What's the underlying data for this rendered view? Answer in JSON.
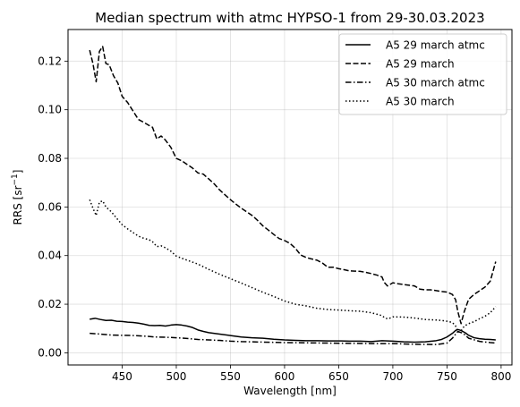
{
  "chart_data": {
    "type": "line",
    "title": "Median spectrum with atmc HYPSO-1 from 29-30.03.2023",
    "xlabel": "Wavelength [nm]",
    "ylabel": "RRS [sr",
    "ylabel_sup": "−1",
    "ylabel_end": "]",
    "xlim": [
      400,
      810
    ],
    "ylim": [
      -0.005,
      0.133
    ],
    "xticks": [
      450,
      500,
      550,
      600,
      650,
      700,
      750,
      800
    ],
    "yticks": [
      0.0,
      0.02,
      0.04,
      0.06,
      0.08,
      0.1,
      0.12
    ],
    "ytick_labels": [
      "0.00",
      "0.02",
      "0.04",
      "0.06",
      "0.08",
      "0.10",
      "0.12"
    ],
    "grid": true,
    "legend_position": "top-right",
    "series": [
      {
        "name": "A5 29 march atmc",
        "style": "solid",
        "color": "#000000",
        "x": [
          420,
          425,
          430,
          435,
          440,
          445,
          450,
          455,
          460,
          465,
          470,
          475,
          480,
          485,
          490,
          495,
          500,
          505,
          510,
          515,
          520,
          525,
          530,
          540,
          550,
          560,
          570,
          580,
          590,
          600,
          610,
          620,
          630,
          640,
          650,
          660,
          670,
          680,
          690,
          700,
          710,
          720,
          730,
          740,
          745,
          750,
          755,
          758,
          760,
          763,
          767,
          770,
          775,
          780,
          785,
          790,
          795
        ],
        "y": [
          0.0138,
          0.0142,
          0.0137,
          0.0133,
          0.0134,
          0.013,
          0.0129,
          0.0126,
          0.0125,
          0.0122,
          0.0118,
          0.0113,
          0.0112,
          0.0113,
          0.011,
          0.0114,
          0.0116,
          0.0114,
          0.011,
          0.0104,
          0.0094,
          0.0088,
          0.0083,
          0.0077,
          0.0071,
          0.0065,
          0.0062,
          0.006,
          0.0056,
          0.0053,
          0.0051,
          0.005,
          0.005,
          0.0049,
          0.0049,
          0.0048,
          0.0048,
          0.0046,
          0.005,
          0.0048,
          0.0045,
          0.0044,
          0.0045,
          0.005,
          0.0055,
          0.0065,
          0.008,
          0.0092,
          0.0096,
          0.0092,
          0.0082,
          0.0072,
          0.0062,
          0.0058,
          0.0056,
          0.0055,
          0.0053
        ]
      },
      {
        "name": "A5 29 march",
        "style": "dashed",
        "color": "#000000",
        "x": [
          420,
          423,
          426,
          429,
          432,
          435,
          438,
          442,
          446,
          450,
          455,
          460,
          465,
          470,
          475,
          478,
          482,
          486,
          490,
          495,
          500,
          505,
          510,
          515,
          520,
          525,
          530,
          535,
          540,
          545,
          550,
          555,
          560,
          565,
          570,
          575,
          580,
          585,
          590,
          595,
          600,
          605,
          610,
          615,
          620,
          625,
          630,
          635,
          640,
          645,
          650,
          655,
          660,
          665,
          670,
          675,
          680,
          685,
          690,
          692,
          695,
          700,
          705,
          710,
          715,
          720,
          725,
          730,
          735,
          740,
          745,
          750,
          752,
          755,
          758,
          760,
          763,
          766,
          770,
          775,
          780,
          785,
          790,
          795
        ],
        "y": [
          0.1245,
          0.119,
          0.1115,
          0.124,
          0.126,
          0.119,
          0.1185,
          0.114,
          0.111,
          0.1055,
          0.103,
          0.0995,
          0.096,
          0.0948,
          0.0935,
          0.0928,
          0.088,
          0.0892,
          0.0875,
          0.0845,
          0.08,
          0.079,
          0.0775,
          0.076,
          0.074,
          0.0735,
          0.0715,
          0.0695,
          0.067,
          0.065,
          0.063,
          0.0612,
          0.0595,
          0.058,
          0.0565,
          0.0545,
          0.0522,
          0.0505,
          0.0487,
          0.047,
          0.0462,
          0.045,
          0.043,
          0.0402,
          0.0392,
          0.0386,
          0.0381,
          0.0369,
          0.0352,
          0.0352,
          0.0346,
          0.0342,
          0.0337,
          0.0336,
          0.0335,
          0.0331,
          0.0326,
          0.032,
          0.0312,
          0.029,
          0.0275,
          0.0288,
          0.0284,
          0.0281,
          0.0278,
          0.0275,
          0.0262,
          0.0259,
          0.0259,
          0.0256,
          0.0252,
          0.025,
          0.0246,
          0.024,
          0.0218,
          0.017,
          0.012,
          0.017,
          0.022,
          0.024,
          0.0255,
          0.027,
          0.0295,
          0.0375
        ]
      },
      {
        "name": "A5 30 march atmc",
        "style": "dashdot",
        "color": "#000000",
        "x": [
          420,
          430,
          440,
          450,
          460,
          470,
          480,
          490,
          500,
          510,
          520,
          530,
          540,
          550,
          560,
          570,
          580,
          590,
          600,
          620,
          640,
          660,
          680,
          700,
          720,
          740,
          750,
          755,
          760,
          765,
          770,
          780,
          790,
          795
        ],
        "y": [
          0.008,
          0.0077,
          0.0073,
          0.0072,
          0.0071,
          0.0069,
          0.0065,
          0.0064,
          0.0062,
          0.0059,
          0.0055,
          0.0053,
          0.0051,
          0.0048,
          0.0046,
          0.0045,
          0.0044,
          0.0043,
          0.0042,
          0.0041,
          0.004,
          0.0039,
          0.0038,
          0.0038,
          0.0035,
          0.0034,
          0.004,
          0.006,
          0.0088,
          0.008,
          0.006,
          0.0047,
          0.0042,
          0.004
        ]
      },
      {
        "name": "A5 30 march",
        "style": "dotted",
        "color": "#000000",
        "x": [
          420,
          423,
          426,
          429,
          432,
          435,
          440,
          445,
          450,
          455,
          460,
          465,
          470,
          475,
          478,
          482,
          486,
          490,
          495,
          500,
          505,
          510,
          520,
          530,
          540,
          550,
          560,
          570,
          580,
          590,
          600,
          610,
          620,
          630,
          640,
          650,
          660,
          670,
          680,
          690,
          693,
          696,
          700,
          710,
          720,
          730,
          740,
          745,
          750,
          755,
          758,
          760,
          763,
          766,
          770,
          775,
          780,
          785,
          790,
          795
        ],
        "y": [
          0.063,
          0.0595,
          0.0565,
          0.062,
          0.0625,
          0.06,
          0.058,
          0.0553,
          0.0527,
          0.051,
          0.0495,
          0.048,
          0.0471,
          0.0465,
          0.0457,
          0.0437,
          0.044,
          0.0432,
          0.0418,
          0.0398,
          0.0389,
          0.0381,
          0.0365,
          0.0343,
          0.0323,
          0.0305,
          0.0287,
          0.0268,
          0.0249,
          0.0232,
          0.0213,
          0.02,
          0.0193,
          0.0183,
          0.0178,
          0.0176,
          0.0173,
          0.0171,
          0.0165,
          0.0153,
          0.0142,
          0.014,
          0.0148,
          0.0147,
          0.0143,
          0.0137,
          0.0135,
          0.0133,
          0.013,
          0.0125,
          0.011,
          0.0085,
          0.009,
          0.011,
          0.012,
          0.0128,
          0.014,
          0.015,
          0.0165,
          0.019
        ]
      }
    ]
  }
}
